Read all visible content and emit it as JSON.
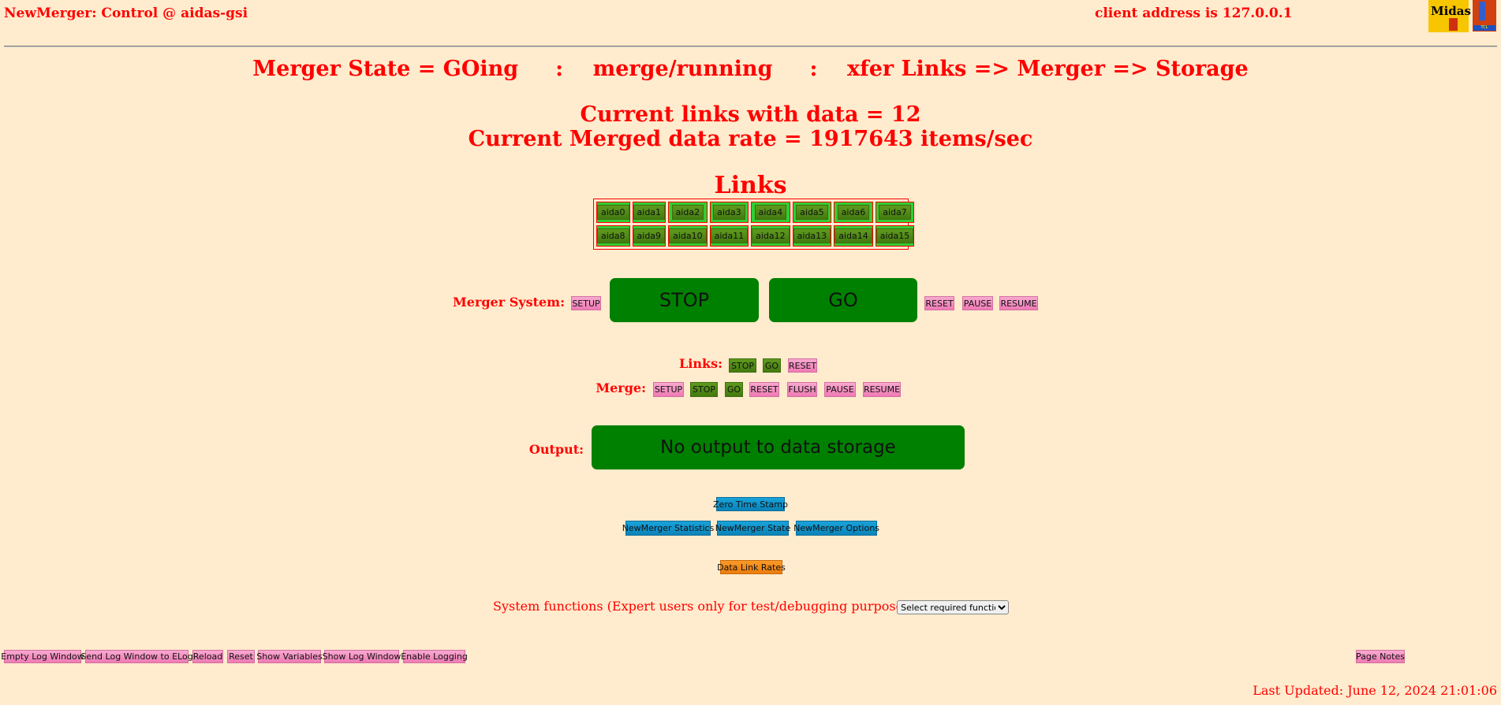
{
  "header": {
    "title": "NewMerger: Control @ aidas-gsi",
    "client_address": "client address is 127.0.0.1",
    "logos": [
      "Midas",
      "TCL"
    ]
  },
  "status": {
    "state_line": "Merger State = GOing     :    merge/running     :    xfer Links => Merger => Storage",
    "links_with_data": "Current links with data = 12",
    "merged_rate": "Current Merged data rate = 1917643 items/sec"
  },
  "links": {
    "heading": "Links",
    "items": [
      "aida0",
      "aida1",
      "aida2",
      "aida3",
      "aida4",
      "aida5",
      "aida6",
      "aida7",
      "aida8",
      "aida9",
      "aida10",
      "aida11",
      "aida12",
      "aida13",
      "aida14",
      "aida15"
    ]
  },
  "merger_system": {
    "label": "Merger System:",
    "setup": "SETUP",
    "stop": "STOP",
    "go": "GO",
    "reset": "RESET",
    "pause": "PAUSE",
    "resume": "RESUME"
  },
  "links_controls": {
    "label": "Links:",
    "stop": "STOP",
    "go": "GO",
    "reset": "RESET"
  },
  "merge_controls": {
    "label": "Merge:",
    "setup": "SETUP",
    "stop": "STOP",
    "go": "GO",
    "reset": "RESET",
    "flush": "FLUSH",
    "pause": "PAUSE",
    "resume": "RESUME"
  },
  "output": {
    "label": "Output:",
    "value": "No output to data storage"
  },
  "tools": {
    "zero_time_stamp": "Zero Time Stamp",
    "statistics": "NewMerger Statistics",
    "state": "NewMerger State",
    "options": "NewMerger Options",
    "data_link_rates": "Data Link Rates"
  },
  "system_functions": {
    "label": "System functions (Expert users only for test/debugging purposes!!!)",
    "select_value": "Select required function"
  },
  "footer": {
    "buttons": [
      "Empty Log Window",
      "Send Log Window to ELog",
      "Reload",
      "Reset",
      "Show Variables",
      "Show Log Window",
      "Enable Logging"
    ],
    "page_notes": "Page Notes",
    "last_updated": "Last Updated: June 12, 2024 21:01:06"
  }
}
